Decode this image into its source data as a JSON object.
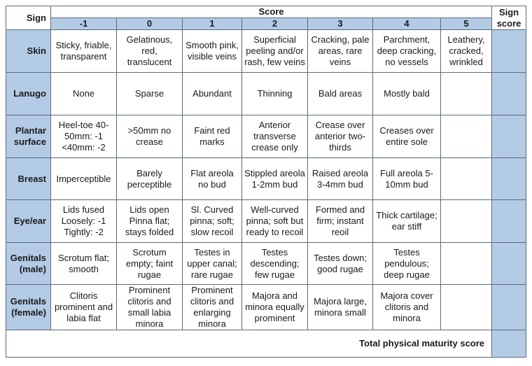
{
  "header": {
    "sign_label": "Sign",
    "score_label": "Score",
    "sign_score_label": "Sign score",
    "scores": [
      "-1",
      "0",
      "1",
      "2",
      "3",
      "4",
      "5"
    ]
  },
  "rows": [
    {
      "sign": "Skin",
      "cells": [
        "Sticky, friable, transparent",
        "Gelatinous, red, translucent",
        "Smooth pink, visible veins",
        "Superficial peeling and/or rash, few veins",
        "Cracking, pale areas, rare veins",
        "Parchment, deep cracking, no vessels",
        "Leathery, cracked, wrinkled"
      ]
    },
    {
      "sign": "Lanugo",
      "cells": [
        "None",
        "Sparse",
        "Abundant",
        "Thinning",
        "Bald areas",
        "Mostly bald",
        ""
      ]
    },
    {
      "sign": "Plantar surface",
      "cells": [
        "Heel-toe 40-50mm: -1 <40mm: -2",
        ">50mm no crease",
        "Faint red marks",
        "Anterior transverse crease only",
        "Crease over anterior two-thirds",
        "Creases over entire sole",
        ""
      ]
    },
    {
      "sign": "Breast",
      "cells": [
        "Imperceptible",
        "Barely perceptible",
        "Flat areola no bud",
        "Stippled areola 1-2mm bud",
        "Raised areola 3-4mm bud",
        "Full areola 5-10mm bud",
        ""
      ]
    },
    {
      "sign": "Eye/ear",
      "cells": [
        "Lids fused Loosely: -1 Tightly: -2",
        "Lids open Pinna flat; stays folded",
        "Sl. Curved pinna; soft; slow recoil",
        "Well-curved pinna; soft but ready to recoil",
        "Formed and firm; instant reoil",
        "Thick cartilage; ear stiff",
        ""
      ]
    },
    {
      "sign": "Genitals (male)",
      "cells": [
        "Scrotum flat; smooth",
        "Scrotum empty; faint rugae",
        "Testes in upper canal; rare rugae",
        "Testes descending; few rugae",
        "Testes down; good rugae",
        "Testes pendulous; deep rugae",
        ""
      ]
    },
    {
      "sign": "Genitals (female)",
      "cells": [
        "Clitoris prominent and labia flat",
        "Prominent clitoris and small labia minora",
        "Prominent clitoris and enlarging minora",
        "Majora and minora equally prominent",
        "Majora large, minora small",
        "Majora cover clitoris and minora",
        ""
      ]
    }
  ],
  "footer": {
    "total_label": "Total physical maturity score"
  }
}
